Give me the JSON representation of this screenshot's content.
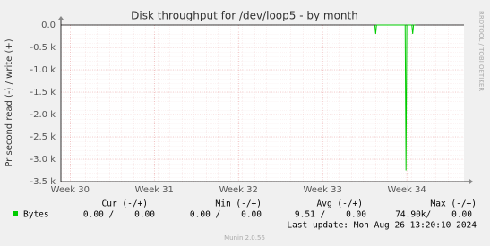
{
  "chart_data": {
    "type": "line",
    "title": "Disk throughput for /dev/loop5 - by month",
    "y_label": "Pr second read (-) / write (+)",
    "side_text": "RRDTOOL / TOBI OETIKER",
    "x": [
      33.62,
      33.63,
      33.64,
      33.98,
      33.99,
      34.0,
      34.06,
      34.07,
      34.08,
      34.1
    ],
    "series": [
      {
        "name": "Bytes",
        "color": "#00cc00",
        "values": [
          0,
          -200,
          0,
          0,
          -3250,
          0,
          0,
          -200,
          0,
          0
        ]
      }
    ],
    "xlim": [
      29.89,
      34.68
    ],
    "xticks": [
      {
        "value": 30,
        "label": "Week 30"
      },
      {
        "value": 31,
        "label": "Week 31"
      },
      {
        "value": 32,
        "label": "Week 32"
      },
      {
        "value": 33,
        "label": "Week 33"
      },
      {
        "value": 34,
        "label": "Week 34"
      }
    ],
    "ylim": [
      -3500,
      0
    ],
    "yticks": [
      {
        "value": 0,
        "label": "0.0"
      },
      {
        "value": -500,
        "label": "-0.5 k"
      },
      {
        "value": -1000,
        "label": "-1.0 k"
      },
      {
        "value": -1500,
        "label": "-1.5 k"
      },
      {
        "value": -2000,
        "label": "-2.0 k"
      },
      {
        "value": -2500,
        "label": "-2.5 k"
      },
      {
        "value": -3000,
        "label": "-3.0 k"
      },
      {
        "value": -3500,
        "label": "-3.5 k"
      }
    ],
    "grid": true,
    "summary": {
      "headers": [
        "Cur (-/+)",
        "Min (-/+)",
        "Avg (-/+)",
        "Max (-/+)"
      ],
      "row": [
        "0.00 /    0.00",
        "0.00 /    0.00",
        "9.51 /    0.00",
        "74.90k/    0.00"
      ]
    },
    "last_update": "Last update: Mon Aug 26 13:20:10 2024",
    "footer": "Munin 2.0.56"
  }
}
